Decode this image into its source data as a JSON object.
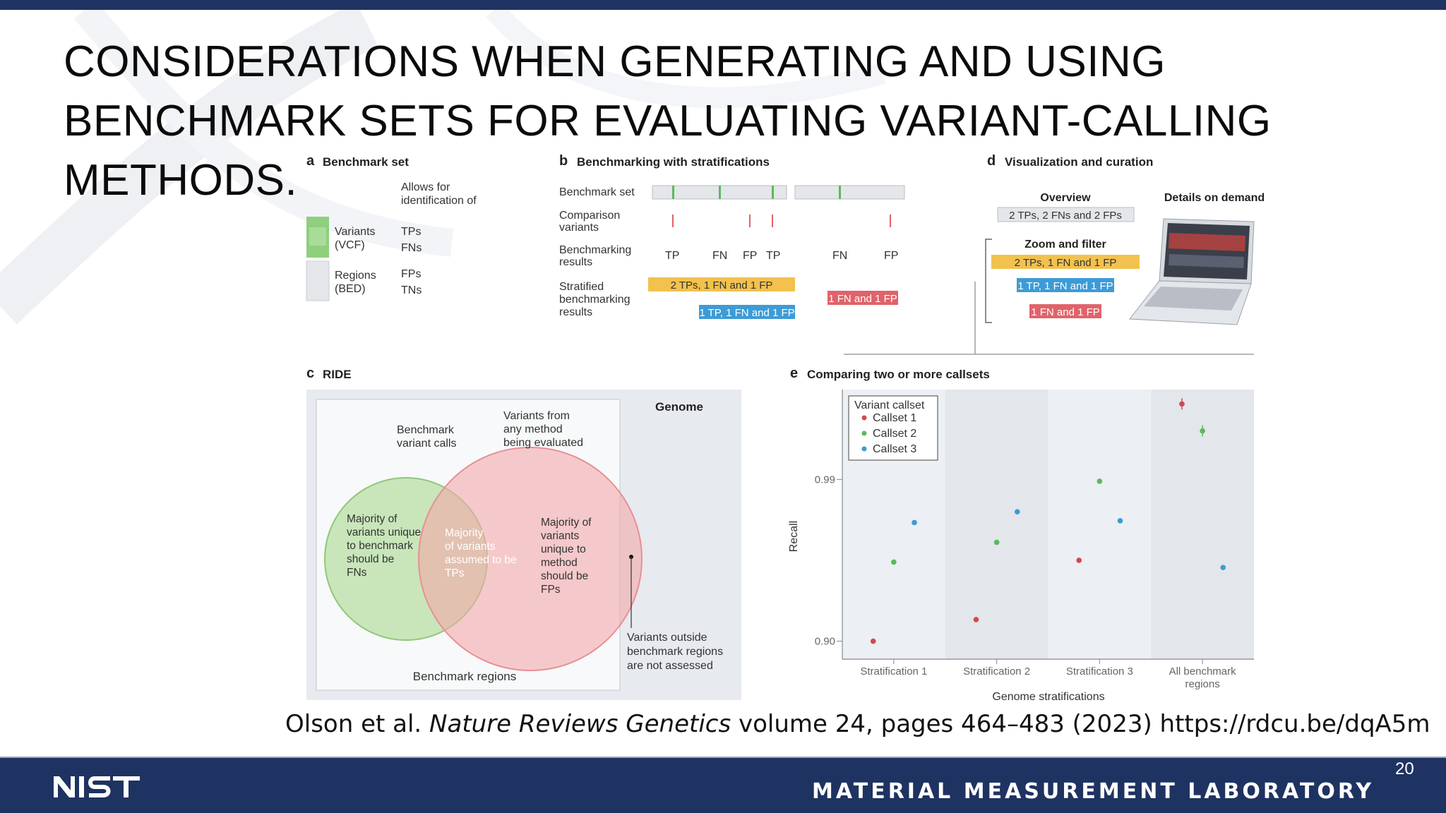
{
  "slide": {
    "title_lines": [
      "CONSIDERATIONS WHEN GENERATING AND USING",
      "BENCHMARK SETS FOR EVALUATING VARIANT-CALLING",
      "METHODS."
    ],
    "citation_pre": "Olson et al. ",
    "citation_journal": "Nature Reviews Genetics",
    "citation_post": " volume 24, pages 464–483 (2023) https://rdcu.be/dqA5m",
    "page_number": "20",
    "footer_lab": "MATERIAL MEASUREMENT LABORATORY",
    "logo_text": "NIST"
  },
  "panel_a": {
    "letter": "a",
    "title": "Benchmark set",
    "allows": [
      "Allows for",
      "identification of"
    ],
    "variants_label": [
      "Variants",
      "(VCF)"
    ],
    "variants_ids": [
      "TPs",
      "FNs"
    ],
    "regions_label": [
      "Regions",
      "(BED)"
    ],
    "regions_ids": [
      "FPs",
      "TNs"
    ]
  },
  "panel_b": {
    "letter": "b",
    "title": "Benchmarking with stratifications",
    "row_benchmark": "Benchmark set",
    "row_comparison": [
      "Comparison",
      "variants"
    ],
    "row_results": [
      "Benchmarking",
      "results"
    ],
    "row_stratified": [
      "Stratified",
      "benchmarking",
      "results"
    ],
    "results": [
      "TP",
      "FN",
      "FP",
      "TP",
      "FN",
      "FP"
    ],
    "box_yellow": "2 TPs, 1 FN and 1 FP",
    "box_blue": "1 TP, 1 FN and 1 FP",
    "box_red": "1 FN and 1 FP"
  },
  "panel_d": {
    "letter": "d",
    "title": "Visualization and curation",
    "overview": "Overview",
    "details": "Details on demand",
    "box_overview": "2 TPs, 2 FNs and 2 FPs",
    "zoom": "Zoom and filter",
    "box_yellow": "2 TPs, 1 FN and 1 FP",
    "box_blue": "1 TP, 1 FN and 1 FP",
    "box_red": "1 FN and 1 FP"
  },
  "panel_c": {
    "letter": "c",
    "title": "RIDE",
    "genome": "Genome",
    "bench_calls": [
      "Benchmark",
      "variant calls"
    ],
    "any_method": [
      "Variants from",
      "any method",
      "being evaluated"
    ],
    "left_text": [
      "Majority of",
      "variants unique",
      "to benchmark",
      "should be",
      "FNs"
    ],
    "mid_text": [
      "Majority",
      "of variants",
      "assumed to be",
      "TPs"
    ],
    "right_text": [
      "Majority of",
      "variants",
      "unique to",
      "method",
      "should be",
      "FPs"
    ],
    "outside": [
      "Variants outside",
      "benchmark regions",
      "are not assessed"
    ],
    "bench_regions": "Benchmark regions",
    "colors": {
      "green": "#9fd08a",
      "red": "#f0a3a6",
      "overlap": "#c8b189"
    }
  },
  "panel_e": {
    "letter": "e",
    "title": "Comparing two or more callsets",
    "legend_title": "Variant callset",
    "ylabel": "Recall",
    "xlabel": "Genome stratifications"
  },
  "chart_data": {
    "type": "scatter",
    "title": "Comparing two or more callsets",
    "xlabel": "Genome stratifications",
    "ylabel": "Recall",
    "categories": [
      "Stratification 1",
      "Stratification 2",
      "Stratification 3",
      "All benchmark regions"
    ],
    "yticks": [
      "0.90",
      "0.99"
    ],
    "ylim": [
      0.89,
      1.04
    ],
    "legend": "top-left",
    "series": [
      {
        "name": "Callset 1",
        "color": "#cf4a4e",
        "values": [
          0.9,
          0.912,
          0.945,
          1.032
        ]
      },
      {
        "name": "Callset 2",
        "color": "#5cb85c",
        "values": [
          0.944,
          0.955,
          0.989,
          1.017
        ]
      },
      {
        "name": "Callset 3",
        "color": "#3d9bd6",
        "values": [
          0.966,
          0.972,
          0.967,
          0.941
        ]
      }
    ]
  }
}
